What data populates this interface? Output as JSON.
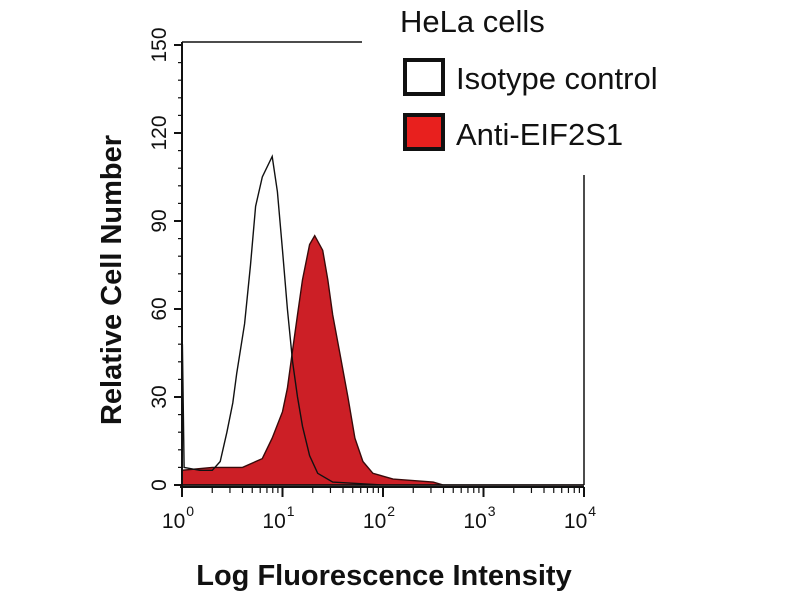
{
  "chart_data": {
    "type": "area",
    "title": "",
    "xlabel": "Log Fluorescence Intensity",
    "ylabel": "Relative Cell Number",
    "x_scale": "log",
    "xlim": [
      1,
      10000
    ],
    "ylim": [
      0,
      150
    ],
    "x_ticks": [
      {
        "base": "10",
        "exp": "0",
        "value": 1
      },
      {
        "base": "10",
        "exp": "1",
        "value": 10
      },
      {
        "base": "10",
        "exp": "2",
        "value": 100
      },
      {
        "base": "10",
        "exp": "3",
        "value": 1000
      },
      {
        "base": "10",
        "exp": "4",
        "value": 10000
      }
    ],
    "y_ticks": [
      "0",
      "30",
      "60",
      "90",
      "120",
      "150"
    ],
    "grid": false,
    "legend": {
      "title": "HeLa cells",
      "placement": "top-right"
    },
    "series": [
      {
        "name": "Isotype control",
        "fill": "#ffffff",
        "stroke": "#111111",
        "x": [
          1,
          1.01,
          1.05,
          1.5,
          2.0,
          2.4,
          2.8,
          3.2,
          3.5,
          4.2,
          4.8,
          5.4,
          6.3,
          7.9,
          8.9,
          10,
          11.2,
          12.6,
          14.1,
          15.8,
          18.6,
          22.4,
          31.6,
          100,
          10000
        ],
        "y": [
          0,
          48,
          6,
          5,
          5,
          8,
          18,
          28,
          38,
          55,
          75,
          95,
          105,
          112,
          100,
          80,
          60,
          42,
          30,
          20,
          10,
          4,
          1,
          0,
          0
        ]
      },
      {
        "name": "Anti-EIF2S1",
        "fill": "#cc1f26",
        "stroke": "#3a0a0a",
        "x": [
          1,
          2.0,
          4.0,
          6.3,
          7.9,
          10,
          11.2,
          12.6,
          14.1,
          15.8,
          18.6,
          20.9,
          25.1,
          28.2,
          31.6,
          37.2,
          44.7,
          52.5,
          63.1,
          79.4,
          126,
          316,
          398,
          10000
        ],
        "y": [
          5,
          6,
          6,
          9,
          16,
          25,
          33,
          46,
          58,
          70,
          82,
          85,
          80,
          70,
          58,
          45,
          30,
          16,
          8,
          4,
          2,
          1,
          0,
          0
        ]
      }
    ]
  }
}
